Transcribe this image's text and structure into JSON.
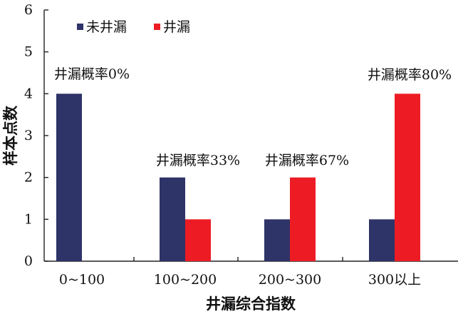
{
  "chart_data": {
    "type": "bar",
    "categories": [
      "0~100",
      "100~200",
      "200~300",
      "300以上"
    ],
    "series": [
      {
        "name": "未井漏",
        "color": "#2e3368",
        "values": [
          4,
          2,
          1,
          1
        ]
      },
      {
        "name": "井漏",
        "color": "#ed1c24",
        "values": [
          0,
          1,
          2,
          4
        ]
      }
    ],
    "xlabel": "井漏综合指数",
    "ylabel": "样本点数",
    "ylim": [
      0,
      6
    ],
    "yticks": [
      0,
      1,
      2,
      3,
      4,
      5,
      6
    ],
    "legend_position": "top-left",
    "grid": false,
    "annotations": [
      "井漏概率0%",
      "井漏概率33%",
      "井漏概率67%",
      "井漏概率80%"
    ]
  }
}
